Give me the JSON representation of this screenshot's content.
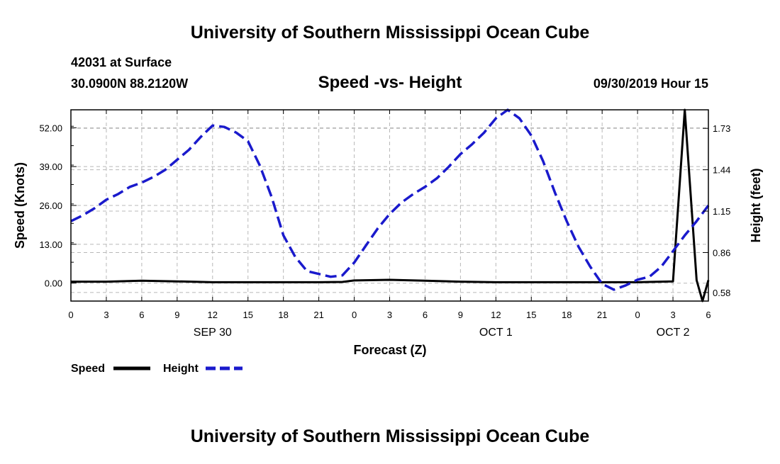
{
  "header": {
    "title": "University of Southern Mississippi Ocean Cube",
    "station": "42031 at Surface",
    "location": "30.0900N 88.2120W",
    "subtitle": "Speed -vs- Height",
    "datetime": "09/30/2019 Hour 15"
  },
  "footer": {
    "title": "University of Southern Mississippi Ocean Cube"
  },
  "legend": {
    "speed_label": "Speed",
    "height_label": "Height",
    "speed_color": "#000000",
    "height_color": "#1a1acc"
  },
  "chart_data": {
    "type": "line",
    "title": "Speed -vs- Height",
    "xlabel": "Forecast (Z)",
    "ylabel": "Speed (Knots)",
    "y2label": "Height (feet)",
    "xlim": [
      0,
      54
    ],
    "ylim": [
      -6,
      58
    ],
    "y2lim": [
      0.52,
      1.86
    ],
    "x_ticks": [
      0,
      3,
      6,
      9,
      12,
      15,
      18,
      21,
      24,
      27,
      30,
      33,
      36,
      39,
      42,
      45,
      48,
      51,
      54
    ],
    "x_tick_labels": [
      "0",
      "3",
      "6",
      "9",
      "12",
      "15",
      "18",
      "21",
      "0",
      "3",
      "6",
      "9",
      "12",
      "15",
      "18",
      "21",
      "0",
      "3",
      "6"
    ],
    "day_labels": [
      {
        "x": 12,
        "label": "SEP 30"
      },
      {
        "x": 36,
        "label": "OCT 1"
      },
      {
        "x": 51,
        "label": "OCT 2"
      }
    ],
    "y_ticks": [
      0,
      13,
      26,
      39,
      52
    ],
    "y_tick_labels": [
      "0.00",
      "13.00",
      "26.00",
      "39.00",
      "52.00"
    ],
    "y2_ticks": [
      0.58,
      0.86,
      1.15,
      1.44,
      1.73
    ],
    "y2_tick_labels": [
      "0.58",
      "0.86",
      "1.15",
      "1.44",
      "1.73"
    ],
    "grid": true,
    "series": [
      {
        "name": "Speed",
        "axis": "left",
        "style": "solid",
        "color": "#000000",
        "x": [
          0,
          3,
          6,
          9,
          12,
          15,
          18,
          21,
          23,
          24,
          27,
          30,
          33,
          36,
          39,
          42,
          45,
          48,
          51,
          52,
          53,
          53.5,
          54
        ],
        "values": [
          0.5,
          0.5,
          0.8,
          0.6,
          0.3,
          0.3,
          0.3,
          0.3,
          0.4,
          0.9,
          1.1,
          0.8,
          0.5,
          0.3,
          0.3,
          0.3,
          0.3,
          0.3,
          0.6,
          58.0,
          1.0,
          -6.0,
          1.0
        ]
      },
      {
        "name": "Height",
        "axis": "right",
        "style": "dashed",
        "color": "#1a1acc",
        "x": [
          0,
          1,
          2,
          3,
          4,
          5,
          6,
          7,
          8,
          9,
          10,
          11,
          12,
          13,
          14,
          15,
          16,
          17,
          18,
          19,
          20,
          21,
          22,
          23,
          24,
          25,
          26,
          27,
          28,
          29,
          30,
          31,
          32,
          33,
          34,
          35,
          36,
          37,
          38,
          39,
          40,
          41,
          42,
          43,
          44,
          45,
          46,
          47,
          48,
          49,
          50,
          51,
          52,
          53,
          54
        ],
        "values": [
          1.08,
          1.12,
          1.17,
          1.23,
          1.27,
          1.32,
          1.35,
          1.39,
          1.44,
          1.51,
          1.58,
          1.67,
          1.75,
          1.74,
          1.7,
          1.64,
          1.47,
          1.25,
          0.98,
          0.83,
          0.73,
          0.71,
          0.69,
          0.7,
          0.79,
          0.91,
          1.03,
          1.13,
          1.21,
          1.27,
          1.32,
          1.38,
          1.46,
          1.55,
          1.62,
          1.7,
          1.8,
          1.86,
          1.8,
          1.68,
          1.5,
          1.28,
          1.08,
          0.9,
          0.76,
          0.64,
          0.6,
          0.63,
          0.67,
          0.69,
          0.76,
          0.87,
          0.98,
          1.08,
          1.19
        ]
      }
    ]
  }
}
